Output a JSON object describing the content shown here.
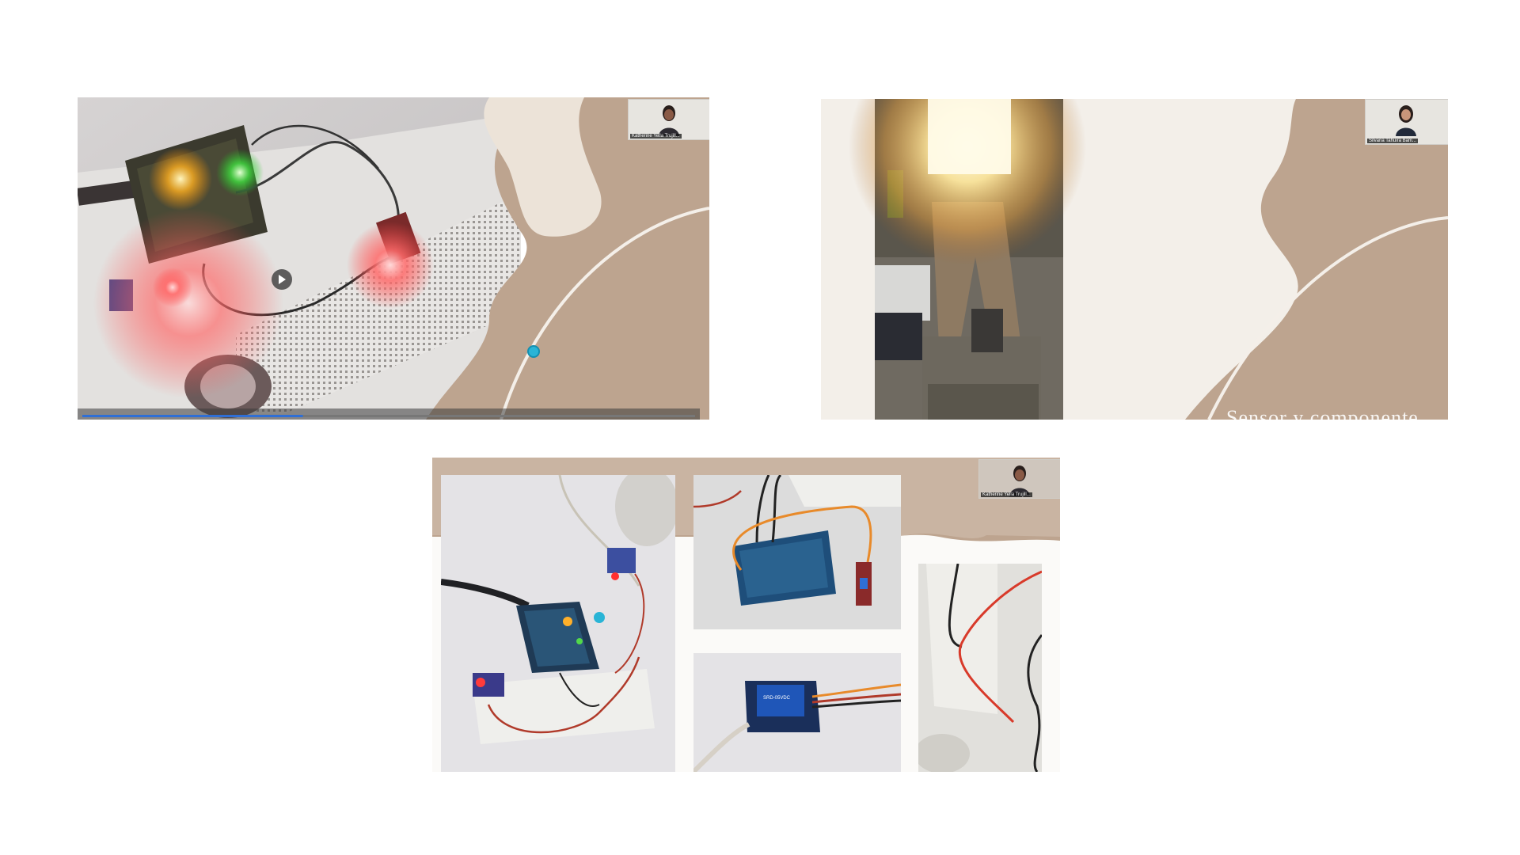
{
  "screens": [
    {
      "id": "top-left",
      "participant": "Katherine Yella Trujill...",
      "has_play_button": true,
      "progress": 0.36
    },
    {
      "id": "top-right",
      "participant": "Silvana Tahuira Bam...",
      "caption": "Sensor y componente"
    },
    {
      "id": "bottom",
      "participant": "Katherine Yella Trujill..."
    }
  ],
  "colors": {
    "background": "#ffffff",
    "slide_tan": "#bda48f",
    "slide_cream": "#ece3d8",
    "slide_sand": "#ddd0c1",
    "cursor_dot": "#29b4d6"
  },
  "icons": {
    "play": "play-icon",
    "cursor": "pointer-dot-icon"
  }
}
